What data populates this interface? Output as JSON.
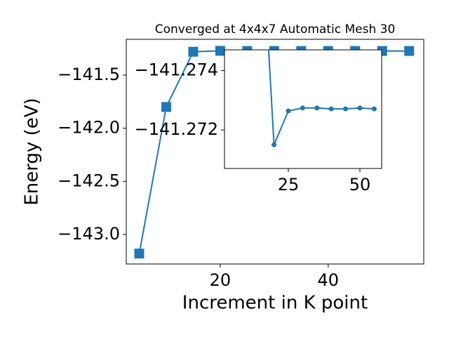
{
  "chart_data": {
    "type": "line",
    "title": "Converged at 4x4x7 Automatic Mesh 30",
    "x_label": "Increment in K point",
    "y_label": "Energy (eV)",
    "x": [
      5,
      10,
      15,
      20,
      25,
      30,
      35,
      40,
      45,
      50,
      55
    ],
    "series": [
      {
        "name": "Energy",
        "color": "#1f77b4",
        "values": [
          -143.18,
          -141.8,
          -141.28,
          -141.2715,
          -141.27264,
          -141.27274,
          -141.27274,
          -141.27271,
          -141.27271,
          -141.27274,
          -141.27271
        ]
      }
    ],
    "xlim": [
      2.6,
      57.7
    ],
    "xticks": [
      20,
      40
    ],
    "ylim": [
      -143.278,
      -141.163
    ],
    "yticks": [
      {
        "value": -141.5,
        "label": "−141.5"
      },
      {
        "value": -142.0,
        "label": "−142.0"
      },
      {
        "value": -142.5,
        "label": "−142.5"
      },
      {
        "value": -143.0,
        "label": "−143.0"
      }
    ],
    "inset": {
      "xlim": [
        2.7,
        57.6
      ],
      "xticks": [
        25,
        50
      ],
      "ylim": [
        -141.2707,
        -141.2747
      ],
      "yticks": [
        {
          "value": -141.274,
          "label": "−141.274"
        },
        {
          "value": -141.272,
          "label": "−141.272"
        }
      ]
    }
  }
}
